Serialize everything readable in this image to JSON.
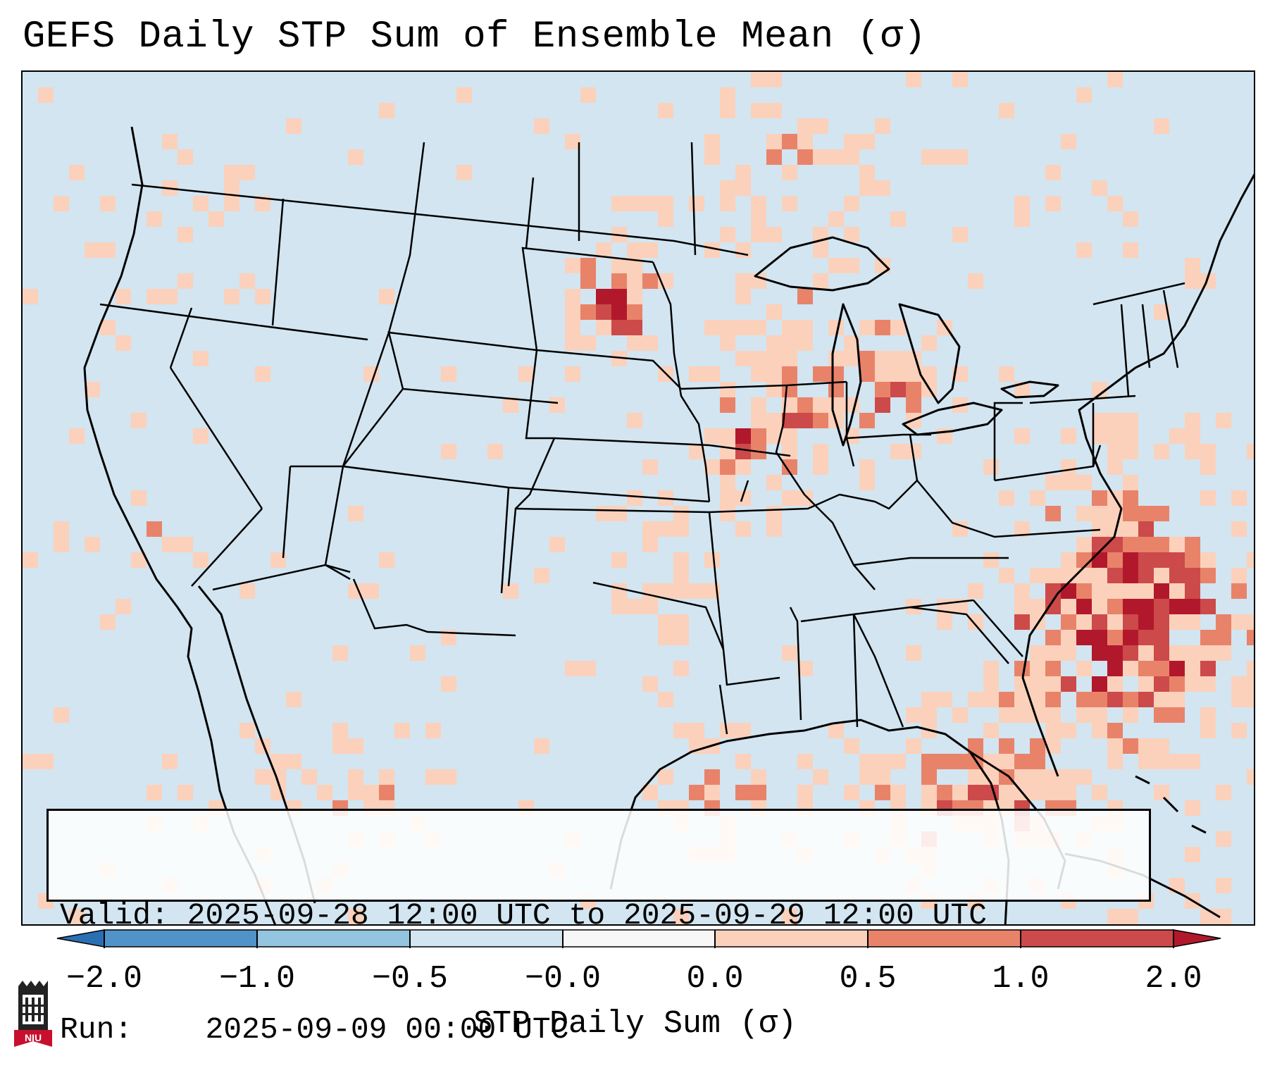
{
  "title": "GEFS Daily STP Sum of Ensemble Mean (σ)",
  "info": {
    "valid_label": "Valid:",
    "valid_value": "2025-09-28 12:00 UTC to 2025-09-29 12:00 UTC",
    "run_label": "Run:",
    "run_value": "2025-09-09 00:00 UTC"
  },
  "colorbar": {
    "label": "STP Daily Sum (σ)",
    "ticks": [
      "−2.0",
      "−1.0",
      "−0.5",
      "−0.0",
      "0.0",
      "0.5",
      "1.0",
      "2.0"
    ],
    "bin_colors": [
      "#2b6fb3",
      "#4f93c8",
      "#93c4e0",
      "#d2e5f1",
      "#f7f7f7",
      "#fbd1bb",
      "#e8836a",
      "#cc4a4a",
      "#b2182b"
    ]
  },
  "map": {
    "background_color": "#d2e5f1",
    "land_outline_color": "#000000",
    "highlight_regions": [
      "South Dakota",
      "Wisconsin",
      "Michigan",
      "Illinois",
      "Iowa",
      "Gulf of Mexico",
      "Western Atlantic",
      "Northern Mexico",
      "Southern California"
    ]
  },
  "logo": {
    "text": "NIU",
    "icon": "university-tower-icon",
    "colors": {
      "tower": "#222222",
      "banner": "#c8102e"
    }
  }
}
